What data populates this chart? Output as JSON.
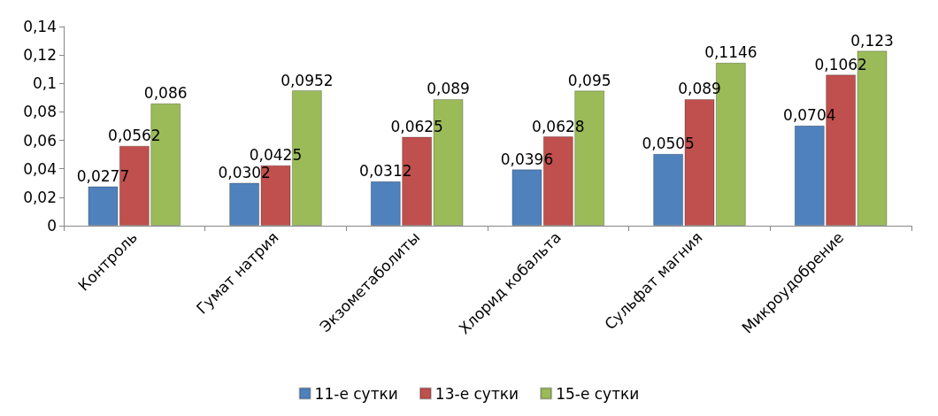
{
  "chart_data": {
    "type": "bar",
    "categories": [
      "Контроль",
      "Гумат натрия",
      "Экзометаболиты",
      "Хлорид кобальта",
      "Сульфат магния",
      "Микроудобрение"
    ],
    "series": [
      {
        "name": "11-е сутки",
        "color": "#4f81bd",
        "values": [
          0.0277,
          0.0302,
          0.0312,
          0.0396,
          0.0505,
          0.0704
        ],
        "value_labels": [
          "0,0277",
          "0,0302",
          "0,0312",
          "0,0396",
          "0,0505",
          "0,0704"
        ]
      },
      {
        "name": "13-е сутки",
        "color": "#c0504d",
        "values": [
          0.0562,
          0.0425,
          0.0625,
          0.0628,
          0.089,
          0.1062
        ],
        "value_labels": [
          "0,0562",
          "0,0425",
          "0,0625",
          "0,0628",
          "0,089",
          "0,1062"
        ]
      },
      {
        "name": "15-е сутки",
        "color": "#9bbb59",
        "values": [
          0.086,
          0.0952,
          0.089,
          0.095,
          0.1146,
          0.123
        ],
        "value_labels": [
          "0,086",
          "0,0952",
          "0,089",
          "0,095",
          "0,1146",
          "0,123"
        ]
      }
    ],
    "ylim": [
      0,
      0.14
    ],
    "yticks": [
      0,
      {
        "value": 0.02,
        "label": "0,02"
      },
      {
        "value": 0.04,
        "label": "0,04"
      },
      {
        "value": 0.06,
        "label": "0,06"
      },
      {
        "value": 0.08,
        "label": "0,08"
      },
      {
        "value": 0.1,
        "label": "0,1"
      },
      {
        "value": 0.12,
        "label": "0,12"
      },
      {
        "value": 0.14,
        "label": "0,14"
      }
    ],
    "grid": false,
    "legend": "bottom"
  }
}
